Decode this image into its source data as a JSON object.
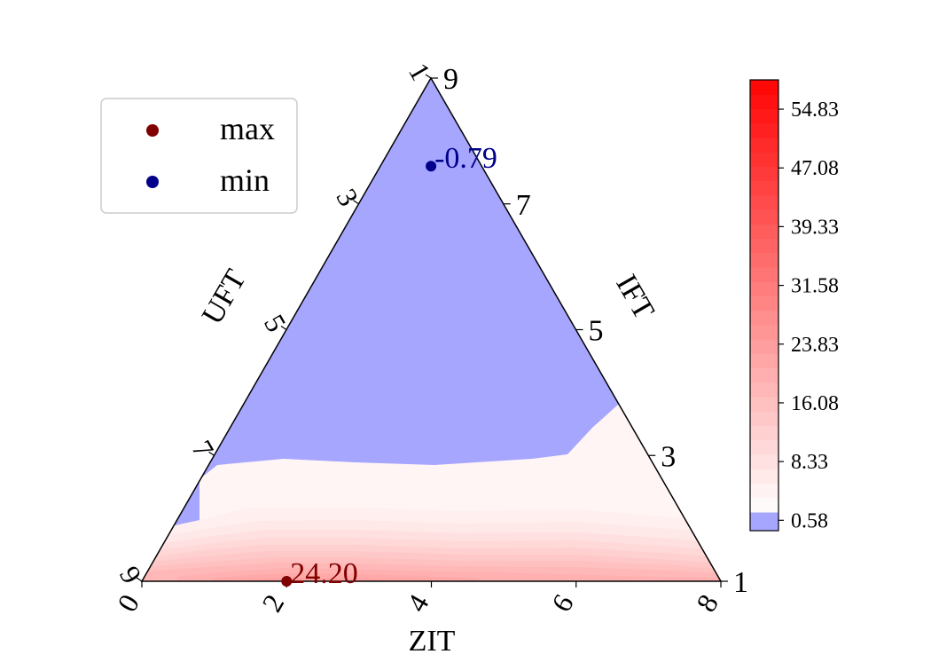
{
  "chart_data": {
    "type": "ternary-contour",
    "axes": {
      "bottom": {
        "label": "ZIT",
        "ticks": [
          "0",
          "2",
          "4",
          "6",
          "8"
        ]
      },
      "left": {
        "label": "UFT",
        "ticks": [
          "1",
          "3",
          "5",
          "7",
          "9"
        ]
      },
      "right": {
        "label": "IFT",
        "ticks": [
          "1",
          "3",
          "5",
          "7",
          "9"
        ]
      }
    },
    "colorbar": {
      "ticks": [
        "0.58",
        "8.33",
        "16.08",
        "23.83",
        "31.58",
        "39.33",
        "47.08",
        "54.83"
      ],
      "range": [
        -0.79,
        58.7
      ],
      "low_color": "#a6a6ff",
      "high_color": "#ff0000"
    },
    "contour": {
      "levels": [
        -0.79,
        0.58,
        2.52,
        4.46,
        6.39,
        8.33,
        10.27,
        12.2,
        14.14,
        16.08,
        18.02,
        19.95,
        21.89,
        23.83
      ],
      "colors": [
        "#a6a6ff",
        "#fff5f5",
        "#ffefef",
        "#ffe8e8",
        "#ffe0e0",
        "#ffd8d8",
        "#ffd0d0",
        "#ffc8c8",
        "#ffc0c0",
        "#ffb8b8",
        "#ffb0b0",
        "#ffa8a8",
        "#ffa0a0"
      ]
    },
    "markers": [
      {
        "name": "max",
        "label": "24.20",
        "ZIT": 2.0,
        "UFT": 9.0,
        "IFT": 1.0,
        "color": "#800000"
      },
      {
        "name": "min",
        "label": "-0.79",
        "ZIT": 4.0,
        "UFT": 2.4,
        "IFT": 7.6,
        "color": "#00008b"
      }
    ],
    "legend": {
      "position": "top-left",
      "entries": [
        {
          "name": "max",
          "color": "#800000"
        },
        {
          "name": "min",
          "color": "#00008b"
        }
      ]
    }
  }
}
